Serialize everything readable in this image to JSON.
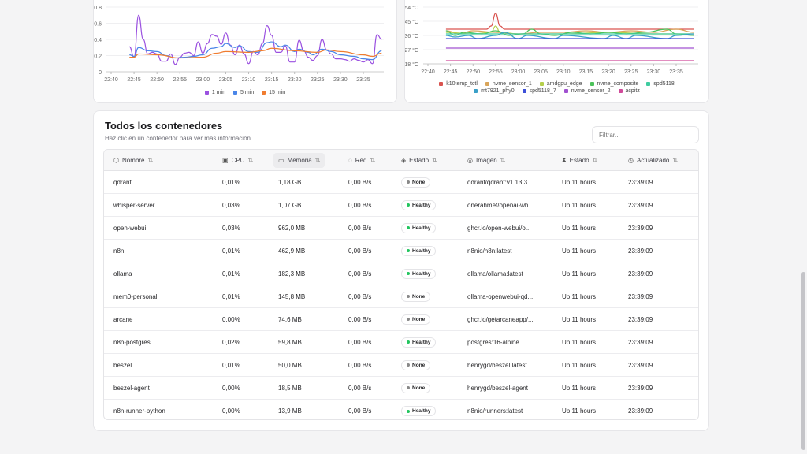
{
  "load_chart": {
    "chart_data": {
      "type": "line",
      "ylim": [
        0,
        0.8
      ],
      "yticks": [
        "0",
        "0.2",
        "0.4",
        "0.6",
        "0.8"
      ],
      "xticks": [
        "22:40",
        "22:45",
        "22:50",
        "22:55",
        "23:00",
        "23:05",
        "23:10",
        "23:15",
        "23:20",
        "23:25",
        "23:30",
        "23:35"
      ],
      "grid": true,
      "legend": "bottom",
      "series": [
        {
          "name": "1 min",
          "color": "#9b51e0",
          "x": [
            "22:44",
            "22:45",
            "22:46",
            "22:47",
            "22:48",
            "22:49",
            "22:50",
            "22:51",
            "22:52",
            "22:53",
            "22:54",
            "22:55",
            "22:56",
            "22:57",
            "22:58",
            "22:59",
            "23:00",
            "23:01",
            "23:02",
            "23:03",
            "23:04",
            "23:05",
            "23:06",
            "23:07",
            "23:08",
            "23:09",
            "23:10",
            "23:11",
            "23:12",
            "23:13",
            "23:14",
            "23:15",
            "23:16",
            "23:17",
            "23:18",
            "23:19",
            "23:20",
            "23:21",
            "23:22",
            "23:23",
            "23:24",
            "23:25",
            "23:26",
            "23:27",
            "23:28",
            "23:29",
            "23:30",
            "23:31",
            "23:32",
            "23:33",
            "23:34",
            "23:35",
            "23:36",
            "23:37",
            "23:38",
            "23:39"
          ],
          "y": [
            0.31,
            0.18,
            0.7,
            0.4,
            0.22,
            0.24,
            0.22,
            0.13,
            0.13,
            0.22,
            0.09,
            0.18,
            0.23,
            0.24,
            0.2,
            0.37,
            0.23,
            0.35,
            0.46,
            0.44,
            0.34,
            0.48,
            0.33,
            0.21,
            0.33,
            0.22,
            0.1,
            0.25,
            0.21,
            0.35,
            0.57,
            0.45,
            0.24,
            0.24,
            0.32,
            0.12,
            0.12,
            0.39,
            0.26,
            0.18,
            0.14,
            0.2,
            0.4,
            0.27,
            0.22,
            0.16,
            0.16,
            0.15,
            0.13,
            0.16,
            0.14,
            0.12,
            0.15,
            0.1,
            0.46,
            0.4
          ]
        },
        {
          "name": "5 min",
          "color": "#4a86e8",
          "x": [
            "22:44",
            "22:45",
            "22:46",
            "22:48",
            "22:50",
            "22:52",
            "22:54",
            "22:56",
            "22:58",
            "23:00",
            "23:02",
            "23:04",
            "23:05",
            "23:07",
            "23:08",
            "23:10",
            "23:12",
            "23:14",
            "23:15",
            "23:17",
            "23:18",
            "23:20",
            "23:21",
            "23:23",
            "23:24",
            "23:26",
            "23:28",
            "23:30",
            "23:33",
            "23:35",
            "23:37",
            "23:39"
          ],
          "y": [
            0.21,
            0.19,
            0.3,
            0.26,
            0.25,
            0.2,
            0.17,
            0.18,
            0.19,
            0.21,
            0.29,
            0.31,
            0.35,
            0.3,
            0.32,
            0.25,
            0.24,
            0.36,
            0.37,
            0.31,
            0.33,
            0.25,
            0.28,
            0.24,
            0.21,
            0.28,
            0.25,
            0.21,
            0.19,
            0.16,
            0.15,
            0.26
          ]
        },
        {
          "name": "15 min",
          "color": "#f07c30",
          "x": [
            "22:44",
            "22:45",
            "22:46",
            "22:50",
            "22:55",
            "23:00",
            "23:03",
            "23:05",
            "23:10",
            "23:13",
            "23:15",
            "23:20",
            "23:25",
            "23:27",
            "23:30",
            "23:35",
            "23:37",
            "23:39"
          ],
          "y": [
            0.18,
            0.18,
            0.22,
            0.21,
            0.17,
            0.18,
            0.23,
            0.25,
            0.24,
            0.26,
            0.29,
            0.26,
            0.24,
            0.27,
            0.25,
            0.21,
            0.19,
            0.23
          ]
        }
      ]
    }
  },
  "temp_chart": {
    "chart_data": {
      "type": "line",
      "ylim": [
        18,
        54
      ],
      "yticks": [
        "18 °C",
        "27 °C",
        "36 °C",
        "45 °C",
        "54 °C"
      ],
      "ytick_values": [
        18,
        27,
        36,
        45,
        54
      ],
      "xticks": [
        "22:40",
        "22:45",
        "22:50",
        "22:55",
        "23:00",
        "23:05",
        "23:10",
        "23:15",
        "23:20",
        "23:25",
        "23:30",
        "23:35"
      ],
      "grid": true,
      "legend": "bottom",
      "series": [
        {
          "name": "k10temp_tctl",
          "color": "#d9534f",
          "x": [
            "22:44",
            "22:53",
            "22:54",
            "22:55",
            "22:56",
            "22:57",
            "23:39"
          ],
          "y": [
            40,
            40,
            42,
            50,
            42,
            40,
            40
          ]
        },
        {
          "name": "nvme_sensor_1",
          "color": "#d9a55a",
          "x": [
            "22:44",
            "22:47",
            "22:50",
            "22:55",
            "23:00",
            "23:05",
            "23:10",
            "23:15",
            "23:20",
            "23:25",
            "23:30",
            "23:35",
            "23:39"
          ],
          "y": [
            39,
            37,
            39,
            38,
            37,
            38,
            38,
            39,
            38,
            39,
            38,
            40,
            38
          ]
        },
        {
          "name": "amdgpu_edge",
          "color": "#b5cf4a",
          "x": [
            "22:44",
            "22:50",
            "22:54",
            "22:55",
            "22:56",
            "23:00",
            "23:10",
            "23:20",
            "23:30",
            "23:39"
          ],
          "y": [
            38,
            37,
            38,
            42,
            38,
            37,
            37,
            38,
            37,
            37
          ]
        },
        {
          "name": "nvme_composite",
          "color": "#4cc25a",
          "x": [
            "22:44",
            "22:46",
            "22:48",
            "22:52",
            "22:55",
            "22:58",
            "23:01",
            "23:03",
            "23:05",
            "23:08",
            "23:12",
            "23:16",
            "23:20",
            "23:24",
            "23:28",
            "23:33",
            "23:35",
            "23:39"
          ],
          "y": [
            39,
            36,
            38,
            37,
            39,
            36,
            37,
            40,
            37,
            36,
            38,
            37,
            38,
            37,
            38,
            40,
            37,
            36
          ]
        },
        {
          "name": "spd5118",
          "color": "#3fcca0",
          "x": [
            "22:44",
            "23:39"
          ],
          "y": [
            37,
            37
          ]
        },
        {
          "name": "mt7921_phy0",
          "color": "#3aa0c8",
          "x": [
            "22:44",
            "22:46",
            "22:49",
            "22:51",
            "22:55",
            "22:57",
            "23:00",
            "23:02",
            "23:08",
            "23:10",
            "23:19",
            "23:21",
            "23:24",
            "23:26",
            "23:33",
            "23:35",
            "23:39"
          ],
          "y": [
            36,
            35,
            36,
            34,
            36,
            38,
            34,
            36,
            34,
            36,
            34,
            36,
            34,
            36,
            34,
            36,
            37
          ]
        },
        {
          "name": "spd5118_7",
          "color": "#3d50d8",
          "x": [
            "22:44",
            "23:39"
          ],
          "y": [
            34,
            34
          ]
        },
        {
          "name": "nvme_sensor_2",
          "color": "#a050d0",
          "x": [
            "22:44",
            "23:39"
          ],
          "y": [
            28,
            28
          ]
        },
        {
          "name": "acpitz",
          "color": "#d04a9a",
          "x": [
            "22:44",
            "23:39"
          ],
          "y": [
            20,
            20
          ]
        }
      ]
    }
  },
  "containers": {
    "title": "Todos los contenedores",
    "subtitle": "Haz clic en un contenedor para ver más información.",
    "filter_placeholder": "Filtrar...",
    "columns": [
      {
        "label": "Nombre",
        "icon": "box-icon",
        "glyph": "⬡"
      },
      {
        "label": "CPU",
        "icon": "cpu-icon",
        "glyph": "▣"
      },
      {
        "label": "Memoria",
        "icon": "memory-icon",
        "glyph": "▭"
      },
      {
        "label": "Red",
        "icon": "network-icon",
        "glyph": "◌"
      },
      {
        "label": "Estado",
        "icon": "shield-icon",
        "glyph": "◈"
      },
      {
        "label": "Imagen",
        "icon": "layers-icon",
        "glyph": "◎"
      },
      {
        "label": "Estado",
        "icon": "hourglass-icon",
        "glyph": "⧗"
      },
      {
        "label": "Actualizado",
        "icon": "clock-icon",
        "glyph": "◷"
      }
    ],
    "sort_glyph": "⇅",
    "health_colors": {
      "None": "#888888",
      "Healthy": "#22c55e"
    },
    "rows": [
      [
        "qdrant",
        "0,01%",
        "1,18 GB",
        "0,00 B/s",
        "None",
        "qdrant/qdrant:v1.13.3",
        "Up 11 hours",
        "23:39:09"
      ],
      [
        "whisper-server",
        "0,03%",
        "1,07 GB",
        "0,00 B/s",
        "Healthy",
        "onerahmet/openai-wh...",
        "Up 11 hours",
        "23:39:09"
      ],
      [
        "open-webui",
        "0,03%",
        "962,0 MB",
        "0,00 B/s",
        "Healthy",
        "ghcr.io/open-webui/o...",
        "Up 11 hours",
        "23:39:09"
      ],
      [
        "n8n",
        "0,01%",
        "462,9 MB",
        "0,00 B/s",
        "Healthy",
        "n8nio/n8n:latest",
        "Up 11 hours",
        "23:39:09"
      ],
      [
        "ollama",
        "0,01%",
        "182,3 MB",
        "0,00 B/s",
        "Healthy",
        "ollama/ollama:latest",
        "Up 11 hours",
        "23:39:09"
      ],
      [
        "mem0-personal",
        "0,01%",
        "145,8 MB",
        "0,00 B/s",
        "None",
        "ollama-openwebui-qd...",
        "Up 11 hours",
        "23:39:09"
      ],
      [
        "arcane",
        "0,00%",
        "74,6 MB",
        "0,00 B/s",
        "None",
        "ghcr.io/getarcaneapp/...",
        "Up 11 hours",
        "23:39:09"
      ],
      [
        "n8n-postgres",
        "0,02%",
        "59,8 MB",
        "0,00 B/s",
        "Healthy",
        "postgres:16-alpine",
        "Up 11 hours",
        "23:39:09"
      ],
      [
        "beszel",
        "0,01%",
        "50,0 MB",
        "0,00 B/s",
        "None",
        "henrygd/beszel:latest",
        "Up 11 hours",
        "23:39:09"
      ],
      [
        "beszel-agent",
        "0,00%",
        "18,5 MB",
        "0,00 B/s",
        "None",
        "henrygd/beszel-agent",
        "Up 11 hours",
        "23:39:09"
      ],
      [
        "n8n-runner-python",
        "0,00%",
        "13,9 MB",
        "0,00 B/s",
        "Healthy",
        "n8nio/runners:latest",
        "Up 11 hours",
        "23:39:09"
      ]
    ]
  }
}
